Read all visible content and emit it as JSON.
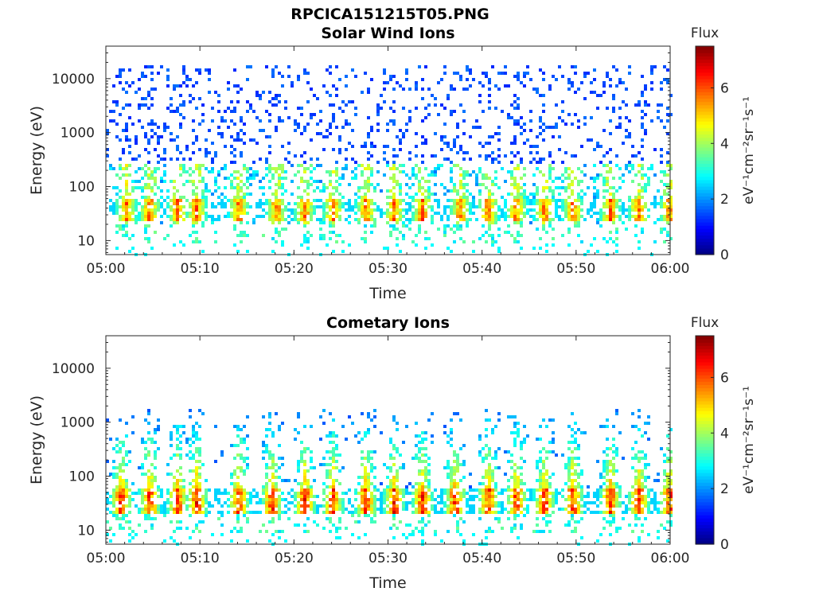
{
  "figure_title": "RPCICA151215T05.PNG",
  "chart_data": [
    {
      "type": "heatmap",
      "title": "Solar Wind Ions",
      "xlabel": "Time",
      "ylabel": "Energy (eV)",
      "x_range": [
        "05:00",
        "06:00"
      ],
      "x_ticks": [
        "05:00",
        "05:10",
        "05:20",
        "05:30",
        "05:40",
        "05:50",
        "06:00"
      ],
      "y_scale": "log",
      "y_range": [
        5.5,
        40000
      ],
      "y_ticks": [
        10,
        100,
        1000,
        10000
      ],
      "y_tick_labels": [
        "10",
        "100",
        "1000",
        "10000"
      ],
      "colorbar": {
        "label": "Flux",
        "unit": "eV⁻¹cm⁻²sr⁻¹s⁻¹",
        "range": [
          0,
          7.5
        ],
        "ticks": [
          0,
          2,
          4,
          6
        ],
        "colormap": "jet"
      },
      "intensity_profile": {
        "ion_band_energy_eV": [
          25,
          60
        ],
        "ion_band_peak_flux": 6.5,
        "background_sparse_energy_eV": [
          100,
          20000
        ],
        "background_flux": 1.2,
        "burst_minutes": [
          2,
          4.5,
          7.5,
          9.5,
          14,
          18,
          21,
          24,
          27.5,
          30.5,
          33.5,
          37.5,
          40.5,
          43.5,
          46.5,
          49.5,
          53.5,
          56.5,
          59.8
        ]
      }
    },
    {
      "type": "heatmap",
      "title": "Cometary Ions",
      "xlabel": "Time",
      "ylabel": "Energy (eV)",
      "x_range": [
        "05:00",
        "06:00"
      ],
      "x_ticks": [
        "05:00",
        "05:10",
        "05:20",
        "05:30",
        "05:40",
        "05:50",
        "06:00"
      ],
      "y_scale": "log",
      "y_range": [
        5.5,
        40000
      ],
      "y_ticks": [
        10,
        100,
        1000,
        10000
      ],
      "y_tick_labels": [
        "10",
        "100",
        "1000",
        "10000"
      ],
      "colorbar": {
        "label": "Flux",
        "unit": "eV⁻¹cm⁻²sr⁻¹s⁻¹",
        "range": [
          0,
          7.5
        ],
        "ticks": [
          0,
          2,
          4,
          6
        ],
        "colormap": "jet"
      },
      "intensity_profile": {
        "ion_band_energy_eV": [
          20,
          60
        ],
        "ion_band_peak_flux": 7.2,
        "plume_energy_eV": [
          60,
          2000
        ],
        "background_flux": 1.5,
        "burst_minutes": [
          1.5,
          4.5,
          7.5,
          9.5,
          14,
          17.5,
          21,
          24,
          27.5,
          30.5,
          33.5,
          37,
          40.5,
          43.5,
          46.5,
          49.5,
          53.5,
          56.5,
          59.8
        ]
      }
    }
  ]
}
